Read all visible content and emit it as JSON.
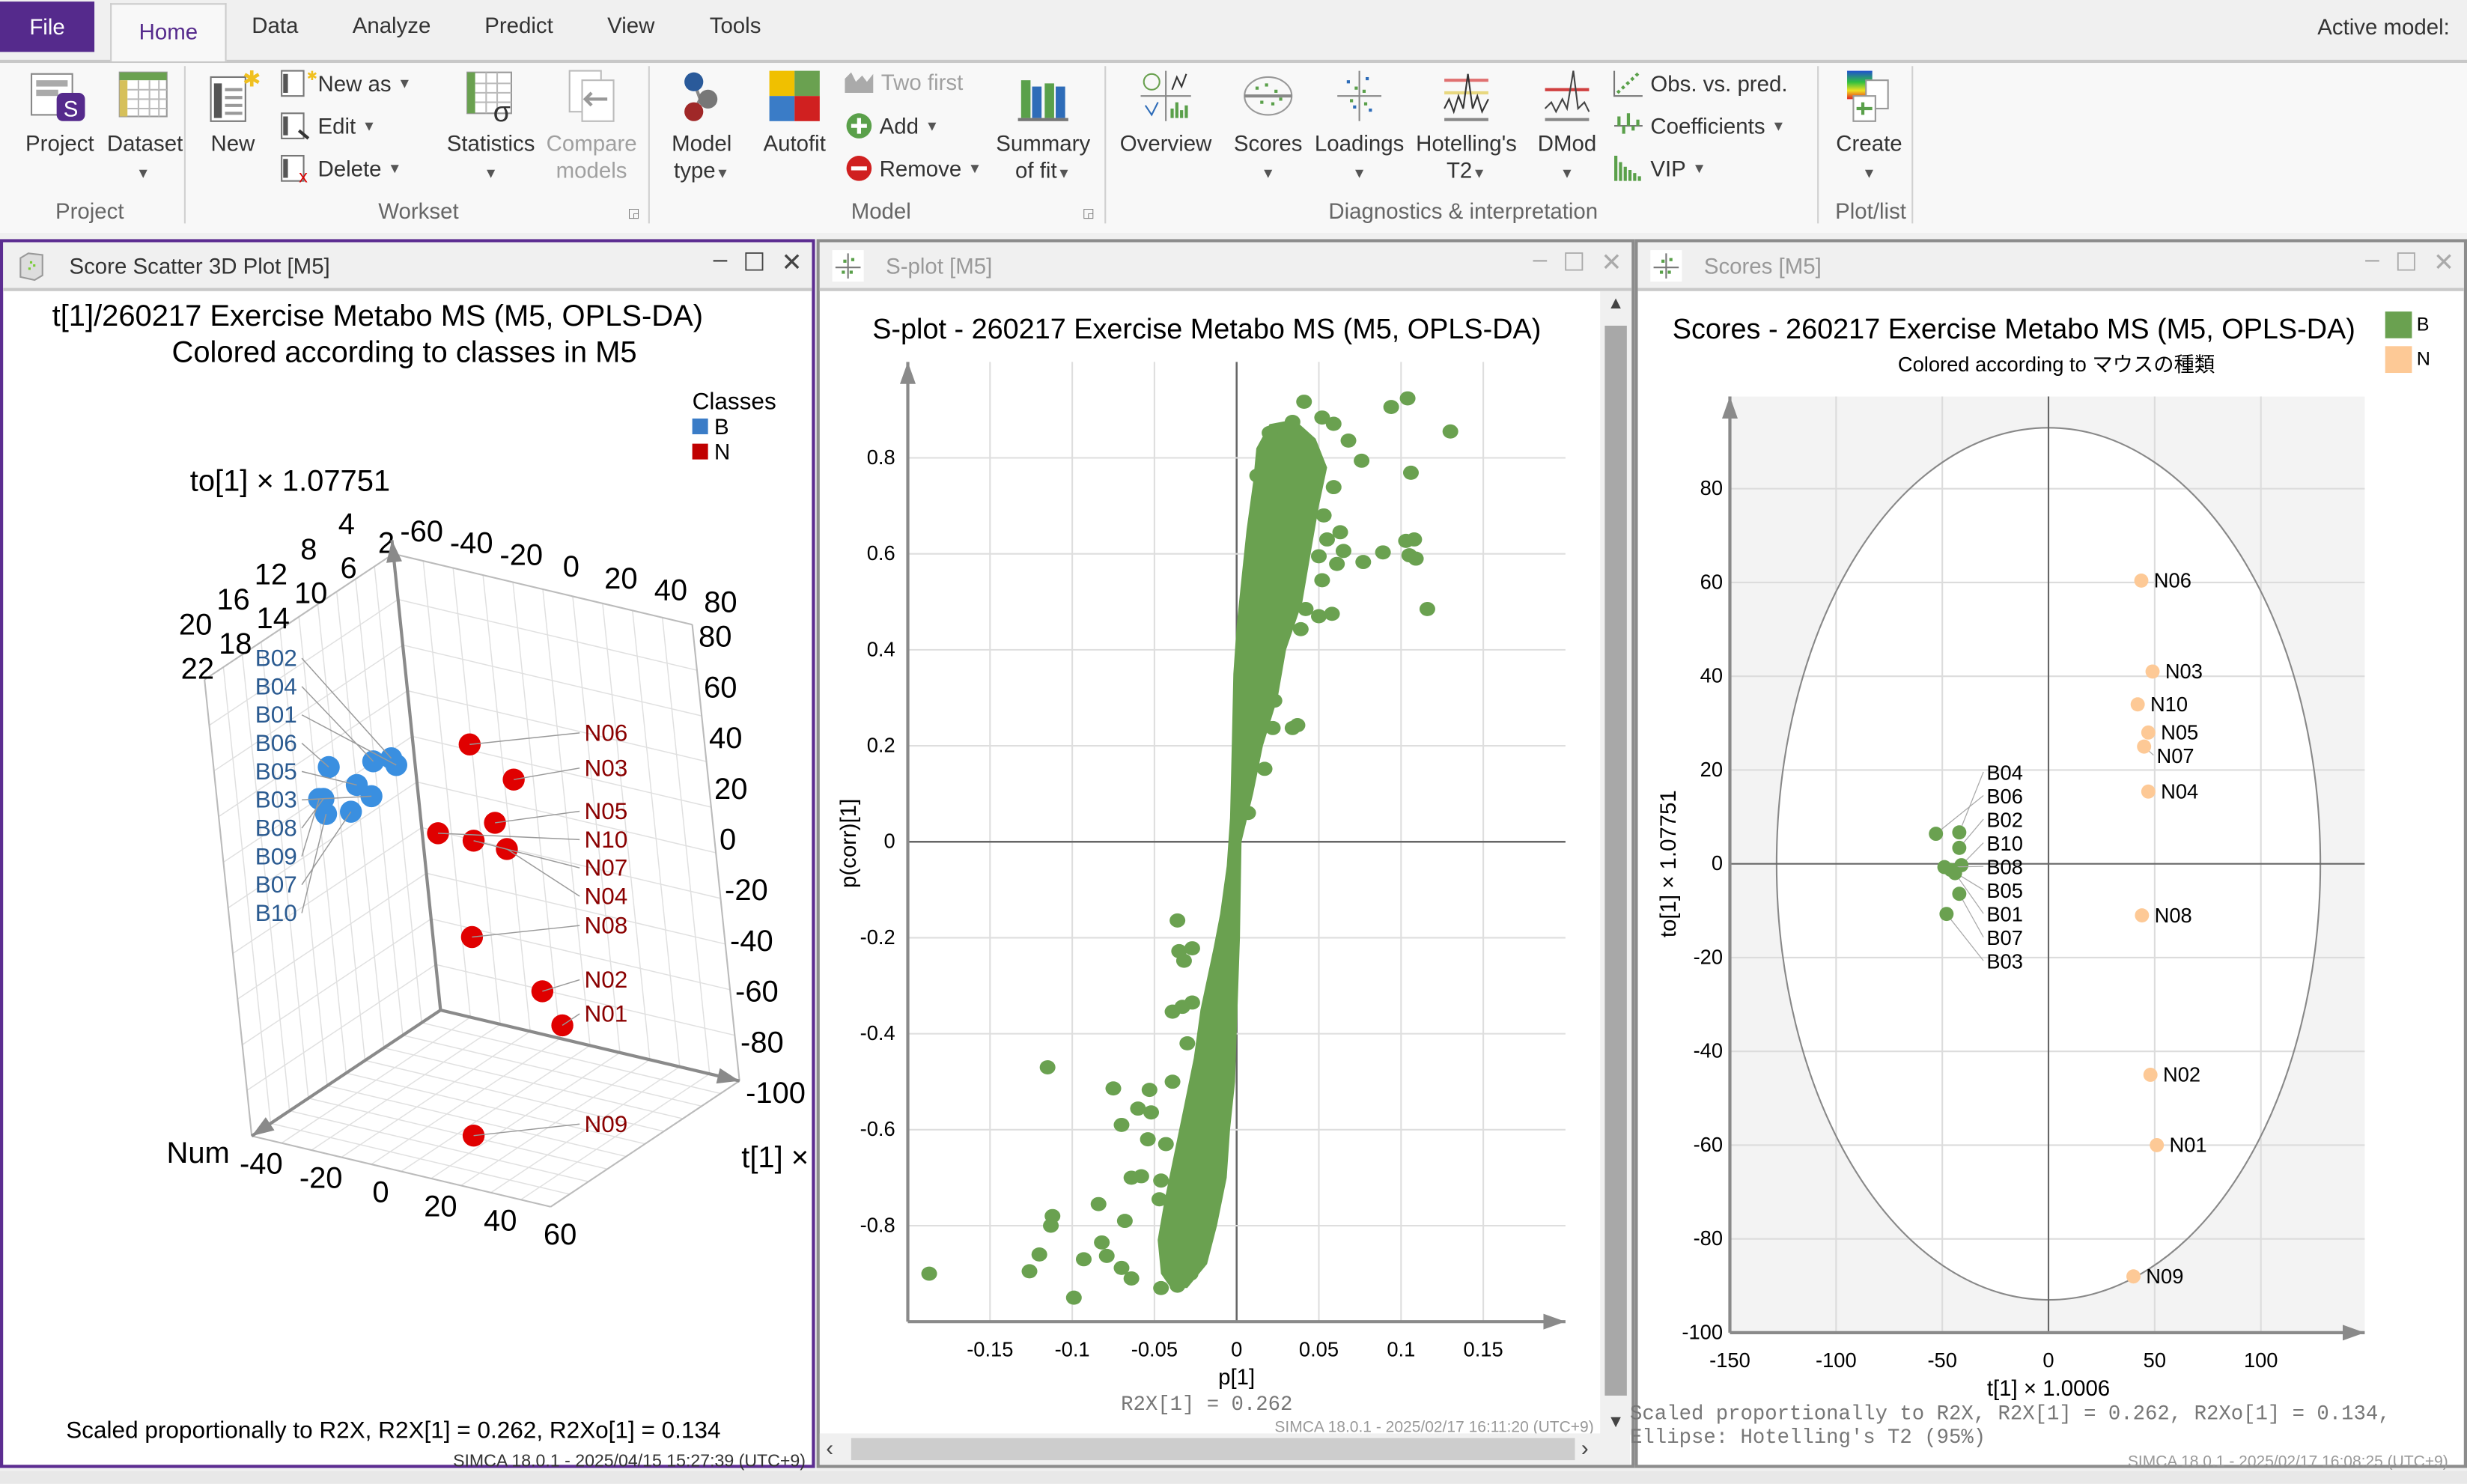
{
  "tabs": {
    "file": "File",
    "items": [
      "Home",
      "Data",
      "Analyze",
      "Predict",
      "View",
      "Tools"
    ],
    "active_model_label": "Active model:"
  },
  "ribbon": {
    "project": {
      "label": "Project",
      "dataset": "Dataset",
      "group": "Project"
    },
    "workset": {
      "new": "New",
      "new_as": "New as",
      "edit": "Edit",
      "delete": "Delete",
      "statistics": "Statistics",
      "compare": "Compare",
      "models": "models",
      "group": "Workset"
    },
    "model": {
      "model": "Model",
      "type": "type",
      "autofit": "Autofit",
      "two_first": "Two first",
      "add": "Add",
      "remove": "Remove",
      "summary": "Summary",
      "of_fit": "of fit",
      "group": "Model"
    },
    "diagnostics": {
      "overview": "Overview",
      "scores": "Scores",
      "loadings": "Loadings",
      "hotelling": "Hotelling's",
      "t2": "T2",
      "dmod": "DMod",
      "obs_pred": "Obs. vs. pred.",
      "coefficients": "Coefficients",
      "vip": "VIP",
      "group": "Diagnostics & interpretation"
    },
    "plotlist": {
      "create": "Create",
      "group": "Plot/list"
    }
  },
  "windows": [
    {
      "title": "Score Scatter 3D Plot [M5]"
    },
    {
      "title": "S-plot [M5]"
    },
    {
      "title": "Scores [M5]"
    }
  ],
  "colors": {
    "accent": "#552a8c",
    "green": "#6aa150",
    "peach": "#fdc996",
    "blue3d": "#3a8fe0",
    "red3d": "#e00000"
  },
  "chart_data": [
    {
      "type": "scatter3d",
      "title": "t[1]/260217  Exercise Metabo MS (M5, OPLS-DA)",
      "subtitle": "Colored according to classes in M5",
      "legend": {
        "title": "Classes",
        "entries": [
          {
            "name": "B",
            "color": "#3a7cc7"
          },
          {
            "name": "N",
            "color": "#c00000"
          }
        ],
        "placement": "top-right"
      },
      "xlabel": "t[1] ×",
      "ylabel": "to[1] × 1.07751",
      "zlabel": "Num",
      "xlim": [
        -40,
        80
      ],
      "ylim": [
        -100,
        80
      ],
      "zlim": [
        0,
        22
      ],
      "x_ticks_back": [
        "-60",
        "-40",
        "-20",
        "0",
        "20",
        "40",
        "80"
      ],
      "x_ticks_front": [
        "-40",
        "-20",
        "0",
        "20",
        "40",
        "60"
      ],
      "y_ticks": [
        "80",
        "60",
        "40",
        "20",
        "0",
        "-20",
        "-40",
        "-60",
        "-80",
        "-100"
      ],
      "z_ticks": [
        "2",
        "4",
        "6",
        "8",
        "10",
        "12",
        "14",
        "16",
        "18",
        "20",
        "22"
      ],
      "points": [
        {
          "label": "B01",
          "class": "B",
          "t": -44,
          "to": -2,
          "num": 1
        },
        {
          "label": "B02",
          "class": "B",
          "t": -42,
          "to": 3.4,
          "num": 2
        },
        {
          "label": "B03",
          "class": "B",
          "t": -48,
          "to": -10.7,
          "num": 3
        },
        {
          "label": "B04",
          "class": "B",
          "t": -42,
          "to": 6.7,
          "num": 4
        },
        {
          "label": "B05",
          "class": "B",
          "t": -46,
          "to": -1.3,
          "num": 5
        },
        {
          "label": "B06",
          "class": "B",
          "t": -53,
          "to": 6.4,
          "num": 6
        },
        {
          "label": "B07",
          "class": "B",
          "t": -42,
          "to": -6.4,
          "num": 7
        },
        {
          "label": "B08",
          "class": "B",
          "t": -49,
          "to": -0.7,
          "num": 8
        },
        {
          "label": "B09",
          "class": "B",
          "t": -47,
          "to": 2,
          "num": 9
        },
        {
          "label": "B10",
          "class": "B",
          "t": -41,
          "to": -0.3,
          "num": 10
        },
        {
          "label": "N01",
          "class": "N",
          "t": 51,
          "to": -60,
          "num": 11
        },
        {
          "label": "N02",
          "class": "N",
          "t": 48,
          "to": -45,
          "num": 12
        },
        {
          "label": "N03",
          "class": "N",
          "t": 49,
          "to": 41,
          "num": 13
        },
        {
          "label": "N04",
          "class": "N",
          "t": 47,
          "to": 15.4,
          "num": 14
        },
        {
          "label": "N05",
          "class": "N",
          "t": 47,
          "to": 28,
          "num": 15
        },
        {
          "label": "N06",
          "class": "N",
          "t": 43.7,
          "to": 60.4,
          "num": 16
        },
        {
          "label": "N07",
          "class": "N",
          "t": 45,
          "to": 25,
          "num": 17
        },
        {
          "label": "N08",
          "class": "N",
          "t": 44,
          "to": -11,
          "num": 18
        },
        {
          "label": "N09",
          "class": "N",
          "t": 40,
          "to": -88,
          "num": 19
        },
        {
          "label": "N10",
          "class": "N",
          "t": 42,
          "to": 34,
          "num": 20
        }
      ],
      "footnote": "Scaled proportionally to R2X, R2X[1] = 0.262, R2Xo[1] = 0.134",
      "footer": "SIMCA 18.0.1 - 2025/04/15 15:27:39 (UTC+9)"
    },
    {
      "type": "scatter",
      "title": "S-plot - 260217  Exercise Metabo MS (M5, OPLS-DA)",
      "xlabel": "p[1]",
      "ylabel": "p(corr)[1]",
      "xlim": [
        -0.2,
        0.2
      ],
      "ylim": [
        -1,
        1
      ],
      "grid": true,
      "x_ticks": [
        -0.15,
        -0.1,
        -0.05,
        0,
        0.05,
        0.1,
        0.15
      ],
      "x_tick_labels": [
        "-0.15",
        "-0.1",
        "-0.05",
        "0",
        "0.05",
        "0.1",
        "0.15"
      ],
      "y_ticks": [
        0.8,
        0.6,
        0.4,
        0.2,
        0,
        -0.2,
        -0.4,
        -0.6,
        -0.8
      ],
      "y_tick_labels": [
        "0.8",
        "0.6",
        "0.4",
        "0.2",
        "0",
        "-0.2",
        "-0.4",
        "-0.6",
        "-0.8"
      ],
      "color": "#6aa150",
      "core_band": [
        [
          -0.03,
          -0.93
        ],
        [
          -0.018,
          -0.88
        ],
        [
          -0.012,
          -0.8
        ],
        [
          -0.006,
          -0.7
        ],
        [
          -0.004,
          -0.6
        ],
        [
          -0.001,
          -0.5
        ],
        [
          0,
          -0.4
        ],
        [
          0.002,
          -0.2
        ],
        [
          0.003,
          0
        ],
        [
          0.01,
          0.1
        ],
        [
          0.016,
          0.2
        ],
        [
          0.025,
          0.3
        ],
        [
          0.03,
          0.4
        ],
        [
          0.04,
          0.5
        ],
        [
          0.045,
          0.6
        ],
        [
          0.05,
          0.7
        ],
        [
          0.055,
          0.78
        ],
        [
          0.048,
          0.84
        ],
        [
          0.035,
          0.88
        ],
        [
          0.02,
          0.87
        ],
        [
          0.012,
          0.82
        ],
        [
          0.01,
          0.75
        ],
        [
          0.006,
          0.65
        ],
        [
          0.003,
          0.55
        ],
        [
          0,
          0.45
        ],
        [
          -0.002,
          0.35
        ],
        [
          -0.003,
          0.2
        ],
        [
          -0.004,
          0.05
        ],
        [
          -0.006,
          -0.05
        ],
        [
          -0.01,
          -0.15
        ],
        [
          -0.014,
          -0.22
        ],
        [
          -0.022,
          -0.35
        ],
        [
          -0.026,
          -0.45
        ],
        [
          -0.032,
          -0.55
        ],
        [
          -0.038,
          -0.65
        ],
        [
          -0.044,
          -0.75
        ],
        [
          -0.048,
          -0.83
        ],
        [
          -0.046,
          -0.9
        ],
        [
          -0.04,
          -0.93
        ]
      ],
      "points": [
        [
          -0.187,
          -0.9
        ],
        [
          -0.115,
          -0.47
        ],
        [
          -0.126,
          -0.895
        ],
        [
          -0.12,
          -0.86
        ],
        [
          -0.112,
          -0.78
        ],
        [
          -0.113,
          -0.8
        ],
        [
          -0.099,
          -0.95
        ],
        [
          -0.093,
          -0.87
        ],
        [
          -0.084,
          -0.755
        ],
        [
          -0.079,
          -0.863
        ],
        [
          -0.082,
          -0.835
        ],
        [
          -0.075,
          -0.514
        ],
        [
          -0.07,
          -0.59
        ],
        [
          -0.068,
          -0.79
        ],
        [
          -0.07,
          -0.888
        ],
        [
          -0.064,
          -0.91
        ],
        [
          -0.06,
          -0.556
        ],
        [
          -0.053,
          -0.517
        ],
        [
          -0.052,
          -0.564
        ],
        [
          -0.054,
          -0.62
        ],
        [
          -0.064,
          -0.7
        ],
        [
          -0.058,
          -0.697
        ],
        [
          -0.046,
          -0.93
        ],
        [
          -0.036,
          -0.925
        ],
        [
          -0.028,
          -0.9
        ],
        [
          -0.036,
          -0.164
        ],
        [
          -0.035,
          -0.228
        ],
        [
          -0.027,
          -0.222
        ],
        [
          -0.032,
          -0.248
        ],
        [
          -0.039,
          -0.354
        ],
        [
          -0.033,
          -0.344
        ],
        [
          -0.027,
          -0.335
        ],
        [
          -0.039,
          -0.5
        ],
        [
          -0.047,
          -0.745
        ],
        [
          -0.046,
          -0.706
        ],
        [
          -0.043,
          -0.63
        ],
        [
          -0.03,
          -0.42
        ],
        [
          0.041,
          0.917
        ],
        [
          0.094,
          0.906
        ],
        [
          0.104,
          0.924
        ],
        [
          0.13,
          0.855
        ],
        [
          0.106,
          0.769
        ],
        [
          0.076,
          0.794
        ],
        [
          0.068,
          0.836
        ],
        [
          0.059,
          0.739
        ],
        [
          0.053,
          0.68
        ],
        [
          0.063,
          0.645
        ],
        [
          0.055,
          0.63
        ],
        [
          0.065,
          0.606
        ],
        [
          0.077,
          0.583
        ],
        [
          0.089,
          0.603
        ],
        [
          0.103,
          0.627
        ],
        [
          0.108,
          0.63
        ],
        [
          0.105,
          0.597
        ],
        [
          0.109,
          0.59
        ],
        [
          0.116,
          0.485
        ],
        [
          0.061,
          0.579
        ],
        [
          0.05,
          0.595
        ],
        [
          0.052,
          0.545
        ],
        [
          0.042,
          0.485
        ],
        [
          0.05,
          0.47
        ],
        [
          0.058,
          0.475
        ],
        [
          0.039,
          0.443
        ],
        [
          0.034,
          0.237
        ],
        [
          0.037,
          0.243
        ],
        [
          0.022,
          0.237
        ],
        [
          0.017,
          0.152
        ],
        [
          0.02,
          0.852
        ],
        [
          0.0125,
          0.763
        ],
        [
          0.034,
          0.875
        ],
        [
          0.052,
          0.884
        ],
        [
          0.059,
          0.871
        ],
        [
          0.023,
          0.294
        ],
        [
          0.007,
          0.06
        ]
      ],
      "footnote": "R2X[1] = 0.262",
      "footer": "SIMCA 18.0.1 - 2025/02/17 16:11:20 (UTC+9)"
    },
    {
      "type": "scatter",
      "title": "Scores - 260217  Exercise Metabo MS (M5, OPLS-DA)",
      "subtitle": "Colored according to マウスの種類",
      "xlabel": "t[1] × 1.0006",
      "ylabel": "to[1] × 1.07751",
      "xlim": [
        -150,
        150
      ],
      "ylim": [
        -100,
        100
      ],
      "grid": true,
      "x_ticks": [
        -150,
        -100,
        -50,
        0,
        50,
        100
      ],
      "x_tick_labels": [
        "-150",
        "-100",
        "-50",
        "0",
        "50",
        "100"
      ],
      "y_ticks": [
        80,
        60,
        40,
        20,
        0,
        -20,
        -40,
        -60,
        -80,
        -100
      ],
      "y_tick_labels": [
        "80",
        "60",
        "40",
        "20",
        "0",
        "-20",
        "-40",
        "-60",
        "-80",
        "-100"
      ],
      "legend": [
        {
          "name": "B",
          "color": "#6aa150"
        },
        {
          "name": "N",
          "color": "#fdc996"
        }
      ],
      "ellipse": {
        "label": "Hotelling's T2 (95%)",
        "rx": 128,
        "ry": 93
      },
      "points": [
        {
          "label": "B06",
          "class": "B",
          "x": -53,
          "y": 6.4
        },
        {
          "label": "B04",
          "class": "B",
          "x": -42,
          "y": 6.7
        },
        {
          "label": "B02",
          "class": "B",
          "x": -42,
          "y": 3.4
        },
        {
          "label": "B10",
          "class": "B",
          "x": -41,
          "y": -0.3
        },
        {
          "label": "B08",
          "class": "B",
          "x": -49,
          "y": -0.7
        },
        {
          "label": "B05",
          "class": "B",
          "x": -46,
          "y": -1.3
        },
        {
          "label": "B01",
          "class": "B",
          "x": -44,
          "y": -2
        },
        {
          "label": "B07",
          "class": "B",
          "x": -42,
          "y": -6.4
        },
        {
          "label": "B03",
          "class": "B",
          "x": -48,
          "y": -10.7
        },
        {
          "label": "N06",
          "class": "N",
          "x": 43.7,
          "y": 60.4
        },
        {
          "label": "N03",
          "class": "N",
          "x": 49,
          "y": 41
        },
        {
          "label": "N10",
          "class": "N",
          "x": 42,
          "y": 34
        },
        {
          "label": "N05",
          "class": "N",
          "x": 47,
          "y": 28
        },
        {
          "label": "N07",
          "class": "N",
          "x": 45,
          "y": 25
        },
        {
          "label": "N04",
          "class": "N",
          "x": 47,
          "y": 15.4
        },
        {
          "label": "N08",
          "class": "N",
          "x": 44,
          "y": -11
        },
        {
          "label": "N02",
          "class": "N",
          "x": 48,
          "y": -45
        },
        {
          "label": "N01",
          "class": "N",
          "x": 51,
          "y": -60
        },
        {
          "label": "N09",
          "class": "N",
          "x": 40,
          "y": -88
        }
      ],
      "footnote_lines": [
        "Scaled proportionally to R2X, R2X[1] = 0.262, R2Xo[1] = 0.134,",
        "Ellipse: Hotelling's T2 (95%)"
      ],
      "footer": "SIMCA 18.0.1 - 2025/02/17 16:08:25 (UTC+9)"
    }
  ]
}
